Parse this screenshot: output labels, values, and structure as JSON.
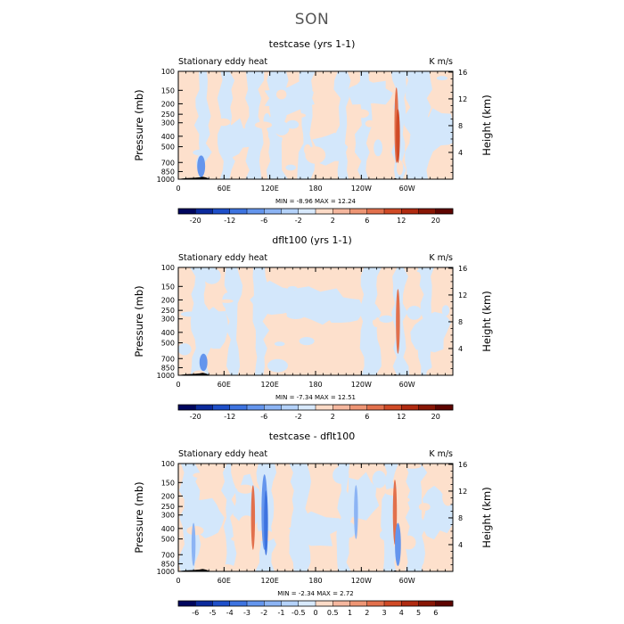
{
  "page": {
    "title": "SON"
  },
  "panels": [
    {
      "title": "testcase (yrs 1-1)",
      "left_label": "Stationary eddy heat",
      "right_label": "K m/s",
      "ylabel": "Pressure (mb)",
      "ylabel_right": "Height (km)",
      "stats": {
        "min_label": "MIN =",
        "min": "-8.96",
        "max_label": "MAX =",
        "max": "12.24"
      }
    },
    {
      "title": "dflt100 (yrs 1-1)",
      "left_label": "Stationary eddy heat",
      "right_label": "K m/s",
      "ylabel": "Pressure (mb)",
      "ylabel_right": "Height (km)",
      "stats": {
        "min_label": "MIN =",
        "min": "-7.34",
        "max_label": "MAX =",
        "max": "12.51"
      }
    },
    {
      "title": "testcase - dflt100",
      "left_label": "Stationary eddy heat",
      "right_label": "K m/s",
      "ylabel": "Pressure (mb)",
      "ylabel_right": "Height (km)",
      "stats": {
        "min_label": "MIN =",
        "min": "-2.34",
        "max_label": "MAX =",
        "max": "2.72"
      }
    }
  ],
  "chart_data": [
    {
      "type": "heatmap",
      "title": "testcase (yrs 1-1)",
      "variable": "Stationary eddy heat",
      "units": "K m/s",
      "xlabel": "",
      "ylabel": "Pressure (mb)",
      "ylabel_right": "Height (km)",
      "x_ticks": [
        "0",
        "60E",
        "120E",
        "180",
        "120W",
        "60W"
      ],
      "y_ticks": [
        "100",
        "150",
        "200",
        "250",
        "300",
        "400",
        "500",
        "700",
        "850",
        "1000"
      ],
      "y_ticks_right": [
        "16",
        "12",
        "8",
        "4"
      ],
      "ylim": [
        1000,
        100
      ],
      "y_scale": "log",
      "min": -8.96,
      "max": 12.24,
      "colorbar": {
        "labels": [
          "-20",
          "-12",
          "-6",
          "-2",
          "2",
          "6",
          "12",
          "20"
        ],
        "colors": [
          "#00065e",
          "#0b2a9c",
          "#1e4fc9",
          "#3d73e0",
          "#6495ed",
          "#8cb4f4",
          "#b4d2fa",
          "#d8e9fd",
          "#fddbc7",
          "#f5b79e",
          "#ee9574",
          "#e2704c",
          "#d04a26",
          "#b02a10",
          "#881605",
          "#5e0400"
        ]
      }
    },
    {
      "type": "heatmap",
      "title": "dflt100 (yrs 1-1)",
      "variable": "Stationary eddy heat",
      "units": "K m/s",
      "xlabel": "",
      "ylabel": "Pressure (mb)",
      "ylabel_right": "Height (km)",
      "x_ticks": [
        "0",
        "60E",
        "120E",
        "180",
        "120W",
        "60W"
      ],
      "y_ticks": [
        "100",
        "150",
        "200",
        "250",
        "300",
        "400",
        "500",
        "700",
        "850",
        "1000"
      ],
      "y_ticks_right": [
        "16",
        "12",
        "8",
        "4"
      ],
      "ylim": [
        1000,
        100
      ],
      "y_scale": "log",
      "min": -7.34,
      "max": 12.51,
      "colorbar": {
        "labels": [
          "-20",
          "-12",
          "-6",
          "-2",
          "2",
          "6",
          "12",
          "20"
        ],
        "colors": [
          "#00065e",
          "#0b2a9c",
          "#1e4fc9",
          "#3d73e0",
          "#6495ed",
          "#8cb4f4",
          "#b4d2fa",
          "#d8e9fd",
          "#fddbc7",
          "#f5b79e",
          "#ee9574",
          "#e2704c",
          "#d04a26",
          "#b02a10",
          "#881605",
          "#5e0400"
        ]
      }
    },
    {
      "type": "heatmap",
      "title": "testcase - dflt100",
      "variable": "Stationary eddy heat",
      "units": "K m/s",
      "xlabel": "",
      "ylabel": "Pressure (mb)",
      "ylabel_right": "Height (km)",
      "x_ticks": [
        "0",
        "60E",
        "120E",
        "180",
        "120W",
        "60W"
      ],
      "y_ticks": [
        "100",
        "150",
        "200",
        "250",
        "300",
        "400",
        "500",
        "700",
        "850",
        "1000"
      ],
      "y_ticks_right": [
        "16",
        "12",
        "8",
        "4"
      ],
      "ylim": [
        1000,
        100
      ],
      "y_scale": "log",
      "min": -2.34,
      "max": 2.72,
      "colorbar": {
        "labels": [
          "-6",
          "-5",
          "-4",
          "-3",
          "-2",
          "-1",
          "-0.5",
          "0",
          "0.5",
          "1",
          "2",
          "3",
          "4",
          "5",
          "6"
        ],
        "colors": [
          "#00065e",
          "#0b2a9c",
          "#1e4fc9",
          "#3d73e0",
          "#6495ed",
          "#8cb4f4",
          "#b4d2fa",
          "#d8e9fd",
          "#fddbc7",
          "#f5b79e",
          "#ee9574",
          "#e2704c",
          "#d04a26",
          "#b02a10",
          "#881605",
          "#5e0400"
        ]
      }
    }
  ]
}
